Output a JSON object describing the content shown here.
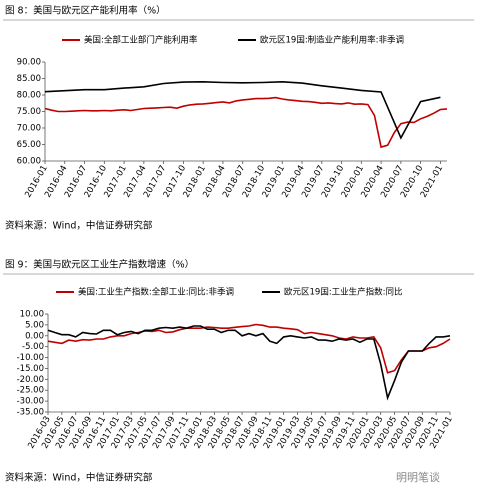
{
  "chart_data": [
    {
      "type": "line",
      "title": "图 8：美国与欧元区产能利用率（%）",
      "source": "资料来源：Wind，中信证券研究部",
      "categories": [
        "2016-01",
        null,
        null,
        "2016-04",
        null,
        null,
        "2016-07",
        null,
        null,
        "2016-10",
        null,
        null,
        "2017-01",
        null,
        null,
        "2017-04",
        null,
        null,
        "2017-07",
        null,
        null,
        "2017-10",
        null,
        null,
        "2018-01",
        null,
        null,
        "2018-04",
        null,
        null,
        "2018-07",
        null,
        null,
        "2018-10",
        null,
        null,
        "2019-01",
        null,
        null,
        "2019-04",
        null,
        null,
        "2019-07",
        null,
        null,
        "2019-10",
        null,
        null,
        "2020-01",
        null,
        null,
        "2020-04",
        null,
        null,
        "2020-07",
        null,
        null,
        "2020-10",
        null,
        null,
        "2021-01",
        null
      ],
      "ylim": [
        60,
        90
      ],
      "yticks": [
        {
          "value": 60,
          "label": "60.00"
        },
        {
          "value": 65,
          "label": "65.00"
        },
        {
          "value": 70,
          "label": "70.00"
        },
        {
          "value": 75,
          "label": "75.00"
        },
        {
          "value": 80,
          "label": "80.00"
        },
        {
          "value": 85,
          "label": "85.00"
        },
        {
          "value": 90,
          "label": "90.00"
        }
      ],
      "series": [
        {
          "name": "美国:全部工业部门产能利用率",
          "color": "#c00000",
          "values": [
            75.9,
            75.4,
            75.0,
            75.0,
            75.1,
            75.2,
            75.3,
            75.2,
            75.2,
            75.3,
            75.2,
            75.4,
            75.5,
            75.3,
            75.6,
            75.9,
            76.0,
            76.1,
            76.2,
            76.3,
            76.0,
            76.6,
            77.0,
            77.2,
            77.3,
            77.5,
            77.7,
            77.9,
            77.6,
            78.2,
            78.5,
            78.7,
            78.9,
            78.9,
            79.0,
            79.2,
            78.8,
            78.5,
            78.3,
            78.1,
            78.0,
            77.8,
            77.5,
            77.6,
            77.4,
            77.3,
            77.6,
            77.2,
            77.3,
            77.1,
            73.8,
            64.2,
            64.8,
            68.6,
            71.3,
            71.8,
            71.7,
            72.8,
            73.5,
            74.5,
            75.6,
            75.8
          ]
        },
        {
          "name": "欧元区19国:制造业产能利用率:非季调",
          "color": "#000000",
          "x": [
            "2016-01",
            "2016-04",
            "2016-07",
            "2016-10",
            "2017-01",
            "2017-04",
            "2017-07",
            "2017-10",
            "2018-01",
            "2018-04",
            "2018-07",
            "2018-10",
            "2019-01",
            "2019-04",
            "2019-07",
            "2019-10",
            "2020-01",
            "2020-04",
            "2020-07",
            "2020-10",
            "2021-01"
          ],
          "values": [
            81.0,
            81.3,
            81.6,
            81.6,
            82.1,
            82.5,
            83.5,
            83.9,
            84.0,
            83.8,
            83.7,
            83.8,
            84.0,
            83.6,
            82.8,
            82.1,
            81.4,
            80.9,
            67.0,
            78.0,
            79.3
          ]
        }
      ]
    },
    {
      "type": "line",
      "title": "图 9：美国与欧元区工业生产指数增速（%）",
      "source": "资料来源：Wind，中信证券研究部",
      "watermark": "明明笔谈",
      "categories": [
        "2016-03",
        null,
        "2016-05",
        null,
        "2016-07",
        null,
        "2016-09",
        null,
        "2016-11",
        null,
        "2017-01",
        null,
        "2017-03",
        null,
        "2017-05",
        null,
        "2017-07",
        null,
        "2017-09",
        null,
        "2017-11",
        null,
        "2018-01",
        null,
        "2018-03",
        null,
        "2018-05",
        null,
        "2018-07",
        null,
        "2018-09",
        null,
        "2018-11",
        null,
        "2019-01",
        null,
        "2019-03",
        null,
        "2019-05",
        null,
        "2019-07",
        null,
        "2019-09",
        null,
        "2019-11",
        null,
        "2020-01",
        null,
        "2020-03",
        null,
        "2020-05",
        null,
        "2020-07",
        null,
        "2020-09",
        null,
        "2020-11",
        null,
        "2021-01"
      ],
      "ylim": [
        -35,
        10
      ],
      "yticks": [
        {
          "value": 10,
          "label": "10.00"
        },
        {
          "value": 5,
          "label": "5.00"
        },
        {
          "value": 0,
          "label": "0.00"
        },
        {
          "value": -5,
          "label": "-5.00"
        },
        {
          "value": -10,
          "label": "-10.00"
        },
        {
          "value": -15,
          "label": "-15.00"
        },
        {
          "value": -20,
          "label": "-20.00"
        },
        {
          "value": -25,
          "label": "-25.00"
        },
        {
          "value": -30,
          "label": "-30.00"
        },
        {
          "value": -35,
          "label": "-35.00"
        }
      ],
      "series": [
        {
          "name": "美国:工业生产指数:全部工业:同比:非季调",
          "color": "#c00000",
          "values": [
            -2.5,
            -3.0,
            -3.5,
            -2.0,
            -2.5,
            -1.8,
            -2.0,
            -1.5,
            -1.5,
            -0.5,
            0.0,
            0.0,
            1.0,
            1.5,
            2.2,
            2.0,
            2.5,
            1.5,
            1.8,
            2.8,
            3.5,
            3.5,
            3.5,
            4.0,
            3.8,
            3.5,
            3.5,
            3.9,
            4.2,
            4.5,
            5.2,
            4.8,
            4.0,
            4.0,
            3.5,
            3.2,
            2.8,
            1.0,
            1.5,
            1.0,
            0.5,
            0.0,
            -1.0,
            -1.5,
            -0.5,
            -1.0,
            -1.0,
            -0.5,
            -5.5,
            -17.0,
            -16.0,
            -11.0,
            -7.0,
            -7.0,
            -7.0,
            -5.5,
            -5.0,
            -3.5,
            -1.5
          ]
        },
        {
          "name": "欧元区19国:工业生产指数:同比",
          "color": "#000000",
          "values": [
            2.5,
            1.5,
            0.5,
            0.5,
            -0.5,
            1.5,
            1.0,
            0.8,
            2.5,
            2.5,
            0.5,
            1.5,
            2.0,
            1.0,
            2.5,
            2.5,
            3.5,
            3.8,
            3.5,
            4.0,
            3.5,
            4.5,
            4.5,
            3.0,
            3.0,
            1.5,
            2.5,
            2.5,
            0.0,
            1.0,
            0.0,
            1.0,
            -2.5,
            -3.5,
            -0.5,
            0.0,
            -0.5,
            -1.0,
            -0.5,
            -2.0,
            -2.0,
            -2.5,
            -1.5,
            -2.0,
            -1.5,
            -3.0,
            -1.5,
            -1.5,
            -13.0,
            -28.5,
            -20.5,
            -12.0,
            -7.0,
            -7.0,
            -7.0,
            -3.5,
            -0.5,
            -0.5,
            0.0
          ]
        }
      ]
    }
  ]
}
